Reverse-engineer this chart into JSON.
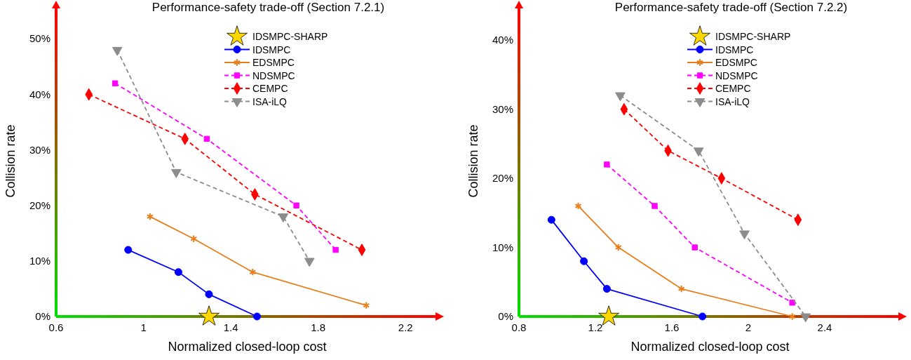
{
  "chart_data": [
    {
      "type": "line",
      "title": "Performance-safety trade-off (Section 7.2.1)",
      "xlabel": "Normalized closed-loop cost",
      "ylabel": "Collision rate",
      "xlim": [
        0.6,
        2.35
      ],
      "ylim": [
        0,
        56
      ],
      "xticks": [
        0.6,
        1,
        1.4,
        1.8,
        2.2
      ],
      "yticks": [
        {
          "value": 0,
          "label": "0%"
        },
        {
          "value": 10,
          "label": "10%"
        },
        {
          "value": 20,
          "label": "20%"
        },
        {
          "value": 30,
          "label": "30%"
        },
        {
          "value": 40,
          "label": "40%"
        },
        {
          "value": 50,
          "label": "50%"
        }
      ],
      "grid": false,
      "legend": "top right",
      "series": [
        {
          "name": "IDSMPC-SHARP",
          "type": "scatter",
          "marker": "star",
          "color": "#ffd700",
          "x": [
            1.3
          ],
          "values": [
            0
          ]
        },
        {
          "name": "IDSMPC",
          "color": "#0000ff",
          "marker": "circle",
          "line_style": "solid",
          "x": [
            0.93,
            1.16,
            1.3,
            1.52
          ],
          "values": [
            12,
            8,
            4,
            0
          ]
        },
        {
          "name": "EDSMPC",
          "color": "#e87e1a",
          "marker": "cross",
          "line_style": "solid",
          "x": [
            1.03,
            1.23,
            1.5,
            2.02
          ],
          "values": [
            18,
            14,
            8,
            2
          ]
        },
        {
          "name": "NDSMPC",
          "color": "#ff00ff",
          "marker": "square",
          "line_style": "dashed",
          "x": [
            0.87,
            1.29,
            1.7,
            1.88
          ],
          "values": [
            42,
            32,
            20,
            12
          ]
        },
        {
          "name": "CEMPC",
          "color": "#ff0000",
          "marker": "diamond",
          "line_style": "dashed",
          "x": [
            0.75,
            1.19,
            1.51,
            2.0
          ],
          "values": [
            40,
            32,
            22,
            12
          ]
        },
        {
          "name": "ISA-iLQ",
          "color": "#8c8c8c",
          "marker": "triangle",
          "line_style": "dashed",
          "x": [
            0.88,
            1.15,
            1.64,
            1.76
          ],
          "values": [
            48,
            26,
            18,
            10
          ]
        }
      ]
    },
    {
      "type": "line",
      "title": "Performance-safety trade-off (Section 7.2.2)",
      "xlabel": "Normalized closed-loop cost",
      "ylabel": "Collision rate",
      "xlim": [
        0.8,
        2.8
      ],
      "ylim": [
        0,
        45
      ],
      "xticks": [
        0.8,
        1.2,
        1.6,
        2,
        2.4
      ],
      "yticks": [
        {
          "value": 0,
          "label": "0%"
        },
        {
          "value": 10,
          "label": "10%"
        },
        {
          "value": 20,
          "label": "20%"
        },
        {
          "value": 30,
          "label": "30%"
        },
        {
          "value": 40,
          "label": "40%"
        }
      ],
      "grid": false,
      "legend": "top right",
      "series": [
        {
          "name": "IDSMPC-SHARP",
          "type": "scatter",
          "marker": "star",
          "color": "#ffd700",
          "x": [
            1.27
          ],
          "values": [
            0
          ]
        },
        {
          "name": "IDSMPC",
          "color": "#0000ff",
          "marker": "circle",
          "line_style": "solid",
          "x": [
            0.97,
            1.14,
            1.26,
            1.76
          ],
          "values": [
            14,
            8,
            4,
            0
          ]
        },
        {
          "name": "EDSMPC",
          "color": "#e87e1a",
          "marker": "cross",
          "line_style": "solid",
          "x": [
            1.11,
            1.32,
            1.65,
            2.23
          ],
          "values": [
            16,
            10,
            4,
            0
          ]
        },
        {
          "name": "NDSMPC",
          "color": "#ff00ff",
          "marker": "square",
          "line_style": "dashed",
          "x": [
            1.26,
            1.51,
            1.72,
            2.23
          ],
          "values": [
            22,
            16,
            10,
            2
          ]
        },
        {
          "name": "CEMPC",
          "color": "#ff0000",
          "marker": "diamond",
          "line_style": "dashed",
          "x": [
            1.35,
            1.58,
            1.86,
            2.26
          ],
          "values": [
            30,
            24,
            20,
            14
          ]
        },
        {
          "name": "ISA-iLQ",
          "color": "#8c8c8c",
          "marker": "triangle",
          "line_style": "dashed",
          "x": [
            1.33,
            1.74,
            1.98,
            2.3
          ],
          "values": [
            32,
            24,
            12,
            0
          ]
        }
      ]
    }
  ]
}
